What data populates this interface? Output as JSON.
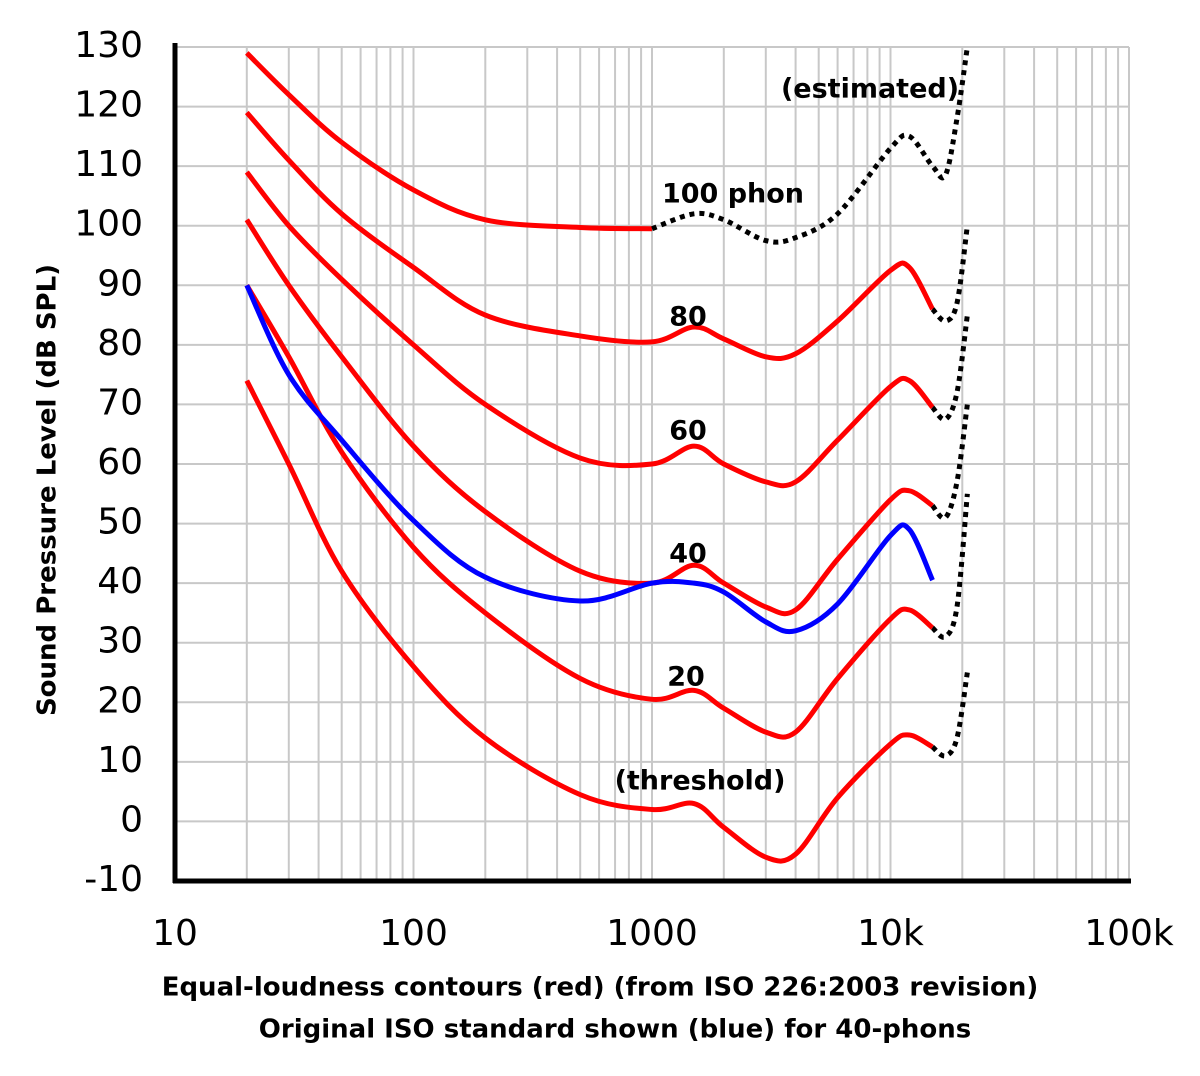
{
  "chart_data": {
    "type": "line",
    "log_x": true,
    "grid": true,
    "xlabel": [
      "Equal-loudness contours (red) (from ISO 226:2003 revision)",
      "Original ISO standard shown (blue) for 40-phons"
    ],
    "ylabel": "Sound Pressure Level (dB SPL)",
    "annotations": [
      "(estimated)",
      "100 phon",
      "80",
      "60",
      "40",
      "20",
      "(threshold)"
    ],
    "xlim": [
      10,
      100000
    ],
    "ylim": [
      -10,
      130
    ],
    "xticks": [
      10,
      100,
      1000,
      {
        "value": 10000,
        "label": "10k"
      },
      {
        "value": 100000,
        "label": "100k"
      }
    ],
    "xminorticks": [
      20,
      30,
      40,
      50,
      60,
      70,
      80,
      90,
      200,
      300,
      400,
      500,
      600,
      700,
      800,
      900,
      2000,
      3000,
      4000,
      5000,
      6000,
      7000,
      8000,
      9000,
      20000,
      30000,
      40000,
      50000,
      60000,
      70000,
      80000,
      90000
    ],
    "yticks": [
      -10,
      0,
      10,
      20,
      30,
      40,
      50,
      60,
      70,
      80,
      90,
      100,
      110,
      120,
      130
    ],
    "x": [
      20,
      30,
      50,
      100,
      200,
      500,
      1000,
      1500,
      2000,
      3000,
      4000,
      6000,
      10000,
      12000,
      15000,
      17000,
      19000,
      21000
    ],
    "series": [
      {
        "color": "#ff0000",
        "values": [
          74,
          60,
          42,
          26,
          14,
          4.5,
          2,
          3,
          -1,
          -6,
          -5.5,
          4,
          13,
          14.5,
          12.5,
          null,
          null,
          null
        ]
      },
      {
        "color": "#ff0000",
        "values": [
          90,
          78,
          62,
          46,
          35,
          24,
          20.5,
          22,
          19,
          15,
          15,
          24,
          34,
          35.5,
          32.5,
          null,
          null,
          null
        ]
      },
      {
        "color": "#ff0000",
        "values": [
          101,
          90,
          78,
          63,
          52,
          42,
          40,
          43,
          40,
          36,
          35.5,
          44,
          54,
          55.5,
          53,
          null,
          null,
          null
        ]
      },
      {
        "color": "#ff0000",
        "values": [
          109,
          100,
          91,
          80,
          70,
          61,
          60,
          63,
          60,
          57,
          57,
          64,
          73,
          74,
          69.5,
          null,
          null,
          null
        ]
      },
      {
        "color": "#ff0000",
        "values": [
          119,
          111,
          102,
          93,
          85,
          81.5,
          80.5,
          83,
          81,
          78,
          78.5,
          84,
          92.5,
          93,
          86,
          null,
          null,
          null
        ]
      },
      {
        "color": "#ff0000",
        "values": [
          129,
          122,
          114,
          106,
          101,
          99.7,
          99.5,
          null,
          null,
          null,
          null,
          null,
          null,
          null,
          null,
          null,
          null,
          null
        ]
      },
      {
        "color": "#0000ff",
        "values": [
          90,
          75,
          64,
          50.5,
          41,
          37,
          40,
          40,
          38.5,
          33.5,
          32,
          36.5,
          48,
          49,
          40.5,
          null,
          null,
          null
        ]
      },
      {
        "color": "#000000",
        "dotted": true,
        "values": [
          null,
          null,
          null,
          null,
          null,
          null,
          null,
          null,
          null,
          null,
          null,
          null,
          null,
          null,
          12.5,
          11,
          14,
          25
        ]
      },
      {
        "color": "#000000",
        "dotted": true,
        "values": [
          null,
          null,
          null,
          null,
          null,
          null,
          null,
          null,
          null,
          null,
          null,
          null,
          null,
          null,
          32.5,
          31,
          36,
          55
        ]
      },
      {
        "color": "#000000",
        "dotted": true,
        "values": [
          null,
          null,
          null,
          null,
          null,
          null,
          null,
          null,
          null,
          null,
          null,
          null,
          null,
          null,
          53,
          51,
          57,
          70
        ]
      },
      {
        "color": "#000000",
        "dotted": true,
        "values": [
          null,
          null,
          null,
          null,
          null,
          null,
          null,
          null,
          null,
          null,
          null,
          null,
          null,
          null,
          69.5,
          67.5,
          72,
          85
        ]
      },
      {
        "color": "#000000",
        "dotted": true,
        "values": [
          null,
          null,
          null,
          null,
          null,
          null,
          null,
          null,
          null,
          null,
          null,
          null,
          null,
          null,
          86,
          84,
          87,
          100
        ]
      },
      {
        "color": "#000000",
        "dotted": true,
        "values": [
          null,
          null,
          null,
          null,
          null,
          null,
          99.5,
          102,
          101,
          97.5,
          98,
          102,
          113,
          115,
          110,
          108.5,
          118,
          130
        ]
      }
    ]
  }
}
